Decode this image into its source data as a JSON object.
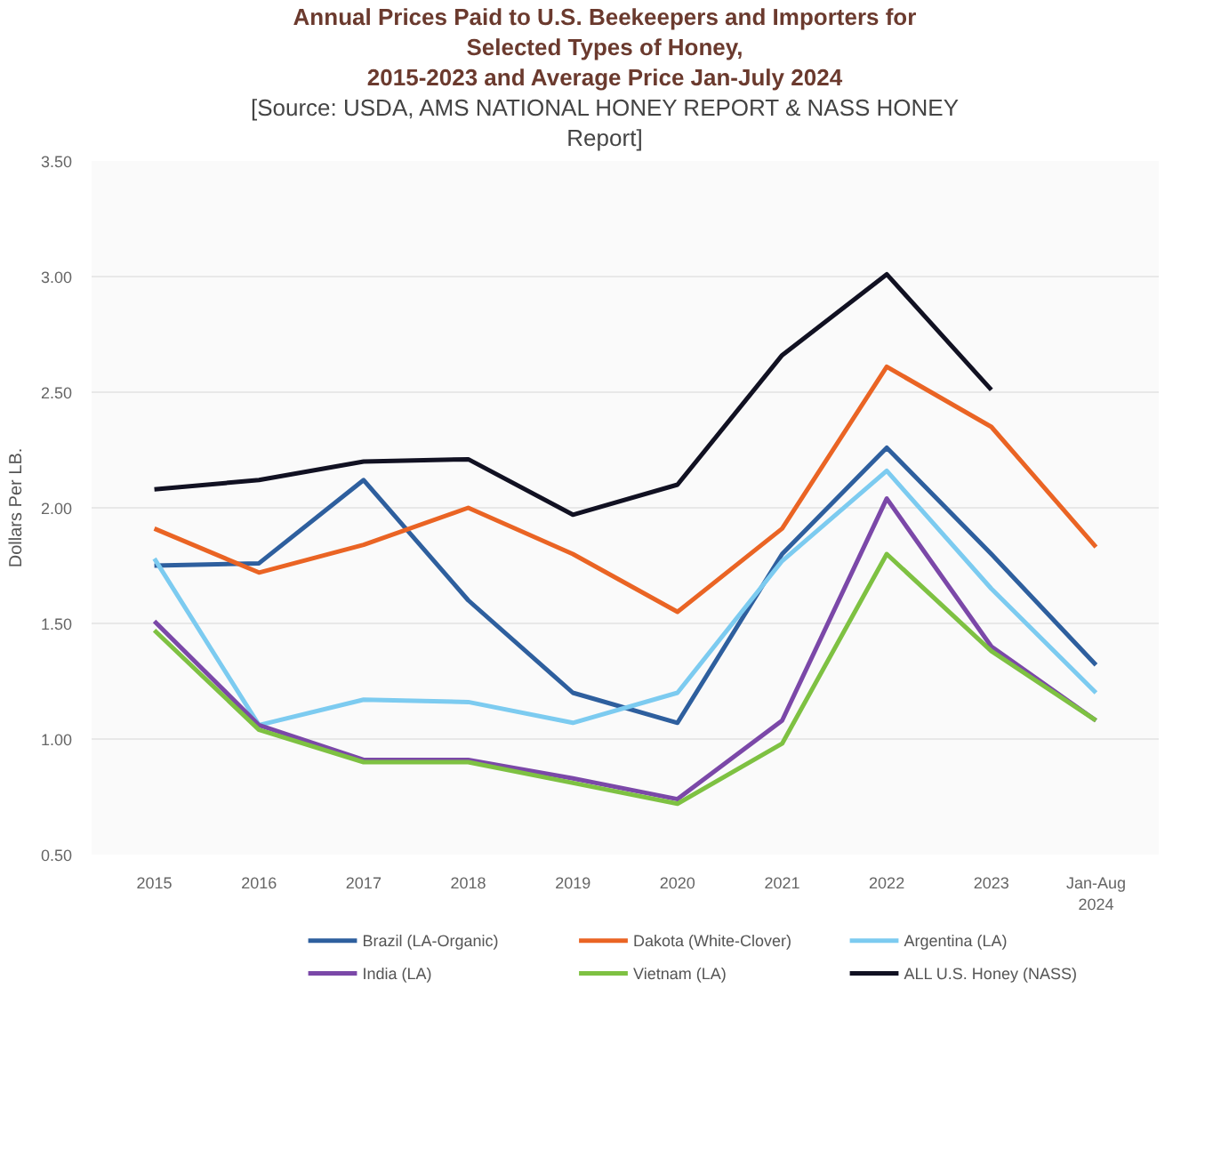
{
  "chart_data": {
    "type": "line",
    "title": "Annual Prices Paid to U.S. Beekeepers and Importers for\nSelected Types of Honey,\n2015-2023 and Average Price Jan-July 2024",
    "subtitle": "[Source: USDA, AMS NATIONAL HONEY REPORT & NASS HONEY\nReport]",
    "ylabel": "Dollars Per LB.",
    "categories": [
      "2015",
      "2016",
      "2017",
      "2018",
      "2019",
      "2020",
      "2021",
      "2022",
      "2023",
      "Jan-Aug\n2024"
    ],
    "ylim": [
      0.5,
      3.5
    ],
    "yticks": [
      {
        "value": 0.5,
        "label": "0.50"
      },
      {
        "value": 1.0,
        "label": "1.00"
      },
      {
        "value": 1.5,
        "label": "1.50"
      },
      {
        "value": 2.0,
        "label": "2.00"
      },
      {
        "value": 2.5,
        "label": "2.50"
      },
      {
        "value": 3.0,
        "label": "3.00"
      },
      {
        "value": 3.5,
        "label": "3.50"
      }
    ],
    "grid": "y",
    "legend": "bottom",
    "marker": "none",
    "line_style": "solid",
    "series": [
      {
        "name": "Brazil (LA-Organic)",
        "color": "#2e5f9e",
        "values": [
          1.75,
          1.76,
          2.12,
          1.6,
          1.2,
          1.07,
          1.8,
          2.26,
          1.8,
          1.32
        ]
      },
      {
        "name": "Dakota (White-Clover)",
        "color": "#ea6424",
        "values": [
          1.91,
          1.72,
          1.84,
          2.0,
          1.8,
          1.55,
          1.91,
          2.61,
          2.35,
          1.83
        ]
      },
      {
        "name": "Argentina (LA)",
        "color": "#7ccbf0",
        "values": [
          1.78,
          1.06,
          1.17,
          1.16,
          1.07,
          1.2,
          1.77,
          2.16,
          1.65,
          1.2
        ]
      },
      {
        "name": "India (LA)",
        "color": "#7b48a8",
        "values": [
          1.51,
          1.06,
          0.91,
          0.91,
          0.83,
          0.74,
          1.08,
          2.04,
          1.4,
          1.08
        ]
      },
      {
        "name": "Vietnam (LA)",
        "color": "#7ec142",
        "values": [
          1.47,
          1.04,
          0.9,
          0.9,
          0.81,
          0.72,
          0.98,
          1.8,
          1.38,
          1.08
        ]
      },
      {
        "name": "ALL U.S. Honey (NASS)",
        "color": "#111122",
        "values": [
          2.08,
          2.12,
          2.2,
          2.21,
          1.97,
          2.1,
          2.66,
          3.01,
          2.51,
          null
        ]
      }
    ]
  }
}
